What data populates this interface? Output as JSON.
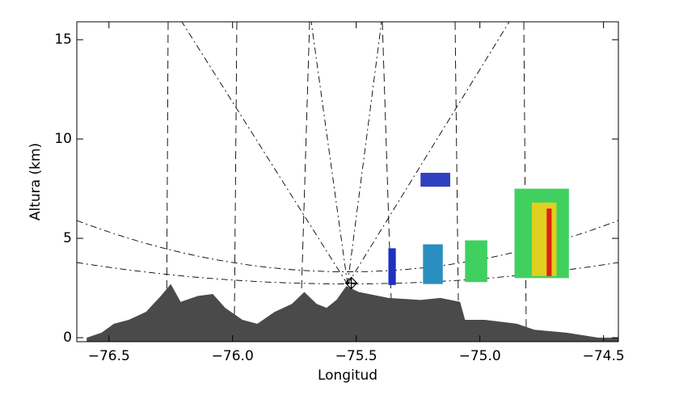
{
  "chart_data": {
    "type": "area",
    "x_label": "Longitud",
    "y_label": "Altura (km)",
    "xlim": [
      -76.63,
      -74.44
    ],
    "ylim": [
      -0.2,
      15.9
    ],
    "xticks": [
      {
        "value": -76.5,
        "label": "−76.5"
      },
      {
        "value": -76.0,
        "label": "−76.0"
      },
      {
        "value": -75.5,
        "label": "−75.5"
      },
      {
        "value": -75.0,
        "label": "−75.0"
      },
      {
        "value": -74.5,
        "label": "−74.5"
      }
    ],
    "yticks": [
      0,
      5,
      10,
      15
    ],
    "terrain": {
      "color": "#4a4a4a",
      "x": [
        -76.59,
        -76.53,
        -76.48,
        -76.42,
        -76.35,
        -76.29,
        -76.25,
        -76.21,
        -76.14,
        -76.08,
        -76.03,
        -75.96,
        -75.9,
        -75.83,
        -75.76,
        -75.71,
        -75.66,
        -75.62,
        -75.58,
        -75.54,
        -75.49,
        -75.37,
        -75.24,
        -75.16,
        -75.08,
        -75.06,
        -74.98,
        -74.85,
        -74.78,
        -74.65,
        -74.52,
        -74.44
      ],
      "values": [
        0,
        0.25,
        0.7,
        0.9,
        1.3,
        2.1,
        2.7,
        1.8,
        2.1,
        2.2,
        1.5,
        0.9,
        0.7,
        1.3,
        1.7,
        2.3,
        1.7,
        1.5,
        1.9,
        2.6,
        2.3,
        2.0,
        1.9,
        2.0,
        1.8,
        0.9,
        0.9,
        0.7,
        0.4,
        0.25,
        0,
        0
      ]
    },
    "echoes": [
      {
        "x": [
          -75.37,
          -75.34
        ],
        "y": [
          2.65,
          4.5
        ],
        "color": "#2030c0"
      },
      {
        "x": [
          -75.23,
          -75.15
        ],
        "y": [
          2.7,
          4.7
        ],
        "color": "#2a8fc0"
      },
      {
        "x": [
          -75.24,
          -75.12
        ],
        "y": [
          7.6,
          8.3
        ],
        "color": "#3040c0"
      },
      {
        "x": [
          -75.06,
          -74.97
        ],
        "y": [
          2.8,
          4.9
        ],
        "color": "#40d060"
      },
      {
        "x": [
          -74.86,
          -74.64
        ],
        "y": [
          3.0,
          7.5
        ],
        "color": "#40d060"
      },
      {
        "x": [
          -74.79,
          -74.69
        ],
        "y": [
          3.1,
          6.8
        ],
        "color": "#e0d020"
      },
      {
        "x": [
          -74.73,
          -74.71
        ],
        "y": [
          3.1,
          6.5
        ],
        "color": "#e02010"
      }
    ],
    "site": {
      "x": -75.52,
      "y": 2.75
    }
  }
}
